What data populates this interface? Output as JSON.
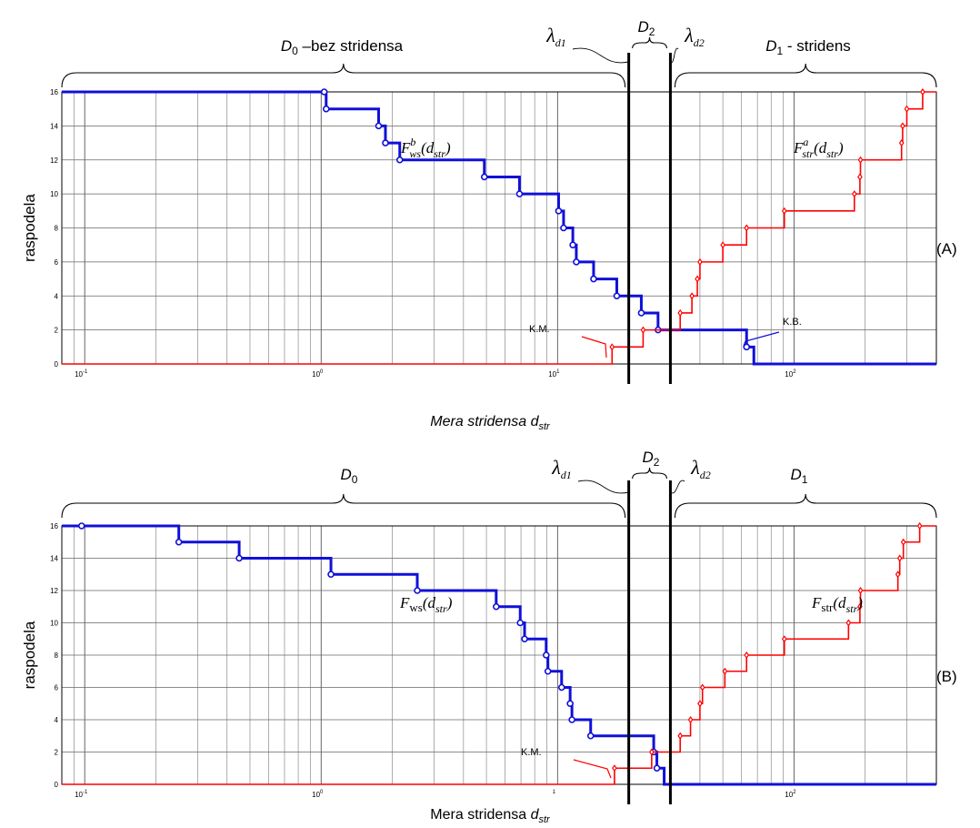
{
  "chart_data": [
    {
      "type": "line",
      "panel_label": "(A)",
      "xlabel_parts": [
        "Mera stridensa ",
        "d",
        "str"
      ],
      "ylabel": "raspodela",
      "x_scale": "log",
      "xlim": [
        0.08,
        400
      ],
      "ylim": [
        0,
        16
      ],
      "yticks": [
        "0",
        "2",
        "4",
        "6",
        "8",
        "10",
        "12",
        "14",
        "16"
      ],
      "xticks": [
        {
          "v": 0.1,
          "b": "10",
          "e": "-1"
        },
        {
          "v": 1,
          "b": "10",
          "e": "0"
        },
        {
          "v": 10,
          "b": "10",
          "e": "1"
        },
        {
          "v": 100,
          "b": "10",
          "e": "2"
        }
      ],
      "grid": true,
      "lambda_lines": [
        20,
        30
      ],
      "regions": [
        {
          "prefix": "D",
          "sub": "0",
          "suffix": " –bez stridensa"
        },
        {
          "prefix": "D",
          "sub": "2",
          "suffix": ""
        },
        {
          "prefix": "D",
          "sub": "1",
          "suffix": " - stridens"
        }
      ],
      "lambda_labels": [
        {
          "sym": "λ",
          "sub": "d1"
        },
        {
          "sym": "λ",
          "sub": "d2"
        }
      ],
      "series": [
        {
          "label": {
            "main": "F",
            "sup": "b",
            "sub": "ws",
            "arg": "(d",
            "argsub": "str",
            "close": ")"
          },
          "color": "#1010d8",
          "marker": "circle",
          "points": [
            [
              1.03,
              16
            ],
            [
              1.05,
              15
            ],
            [
              1.75,
              14
            ],
            [
              1.87,
              13
            ],
            [
              2.15,
              12
            ],
            [
              4.9,
              11
            ],
            [
              6.9,
              10
            ],
            [
              10.1,
              9
            ],
            [
              10.6,
              8
            ],
            [
              11.6,
              7
            ],
            [
              12.0,
              6
            ],
            [
              14.2,
              5
            ],
            [
              17.8,
              4
            ],
            [
              22.6,
              3
            ],
            [
              26.6,
              2
            ],
            [
              63,
              1
            ]
          ]
        },
        {
          "label": {
            "main": "F",
            "sup": "a",
            "sub": "str",
            "arg": "(d",
            "argsub": "str",
            "close": ")"
          },
          "color": "#ff0000",
          "marker": "diamond",
          "points": [
            [
              17,
              1
            ],
            [
              23,
              2
            ],
            [
              33,
              3
            ],
            [
              37,
              4
            ],
            [
              39,
              5
            ],
            [
              40,
              6
            ],
            [
              50,
              7
            ],
            [
              63,
              8
            ],
            [
              91,
              9
            ],
            [
              180,
              10
            ],
            [
              190,
              11
            ],
            [
              191,
              12
            ],
            [
              285,
              13
            ],
            [
              288,
              14
            ],
            [
              300,
              15
            ],
            [
              350,
              16
            ]
          ]
        }
      ],
      "callouts": [
        "K.M.",
        "K.B."
      ]
    },
    {
      "type": "line",
      "panel_label": "(B)",
      "xlabel_parts": [
        "Mera stridensa ",
        "d",
        "str"
      ],
      "ylabel": "raspodela",
      "x_scale": "log",
      "xlim": [
        0.08,
        400
      ],
      "ylim": [
        0,
        16
      ],
      "yticks": [
        "0",
        "2",
        "4",
        "6",
        "8",
        "10",
        "12",
        "14",
        "16"
      ],
      "xticks": [
        {
          "v": 0.1,
          "b": "10",
          "e": "-1"
        },
        {
          "v": 1,
          "b": "10",
          "e": "0"
        },
        {
          "v": 10,
          "b": "",
          "e": "1"
        },
        {
          "v": 100,
          "b": "10",
          "e": "2"
        }
      ],
      "grid": true,
      "lambda_lines": [
        20,
        30
      ],
      "regions": [
        {
          "prefix": "D",
          "sub": "0",
          "suffix": ""
        },
        {
          "prefix": "D",
          "sub": "2",
          "suffix": ""
        },
        {
          "prefix": "D",
          "sub": "1",
          "suffix": ""
        }
      ],
      "lambda_labels": [
        {
          "sym": "λ",
          "sub": "d1"
        },
        {
          "sym": "λ",
          "sub": "d2"
        }
      ],
      "series": [
        {
          "label": {
            "main": "F",
            "sup": "",
            "sub": "ws",
            "arg": "(d",
            "argsub": "str",
            "close": ")"
          },
          "color": "#1010d8",
          "marker": "circle",
          "points": [
            [
              0.097,
              16
            ],
            [
              0.25,
              15
            ],
            [
              0.45,
              14
            ],
            [
              1.1,
              13
            ],
            [
              2.55,
              12
            ],
            [
              5.5,
              11
            ],
            [
              6.95,
              10
            ],
            [
              7.25,
              9
            ],
            [
              8.95,
              8
            ],
            [
              9.1,
              7
            ],
            [
              10.4,
              6
            ],
            [
              11.3,
              5
            ],
            [
              11.5,
              4
            ],
            [
              13.8,
              3
            ],
            [
              25.5,
              2
            ],
            [
              26.3,
              1
            ]
          ]
        },
        {
          "label": {
            "main": "F",
            "sup": "",
            "sub": "str",
            "arg": "(d",
            "argsub": "str",
            "close": ")"
          },
          "color": "#ff0000",
          "marker": "diamond",
          "points": [
            [
              17.4,
              1
            ],
            [
              25,
              2
            ],
            [
              33,
              3
            ],
            [
              36.5,
              4
            ],
            [
              40,
              5
            ],
            [
              41,
              6
            ],
            [
              51,
              7
            ],
            [
              63,
              8
            ],
            [
              91,
              9
            ],
            [
              170,
              10
            ],
            [
              190,
              11
            ],
            [
              191,
              12
            ],
            [
              275,
              13
            ],
            [
              280,
              14
            ],
            [
              290,
              15
            ],
            [
              340,
              16
            ]
          ]
        }
      ],
      "callouts": [
        "K.M."
      ]
    }
  ]
}
